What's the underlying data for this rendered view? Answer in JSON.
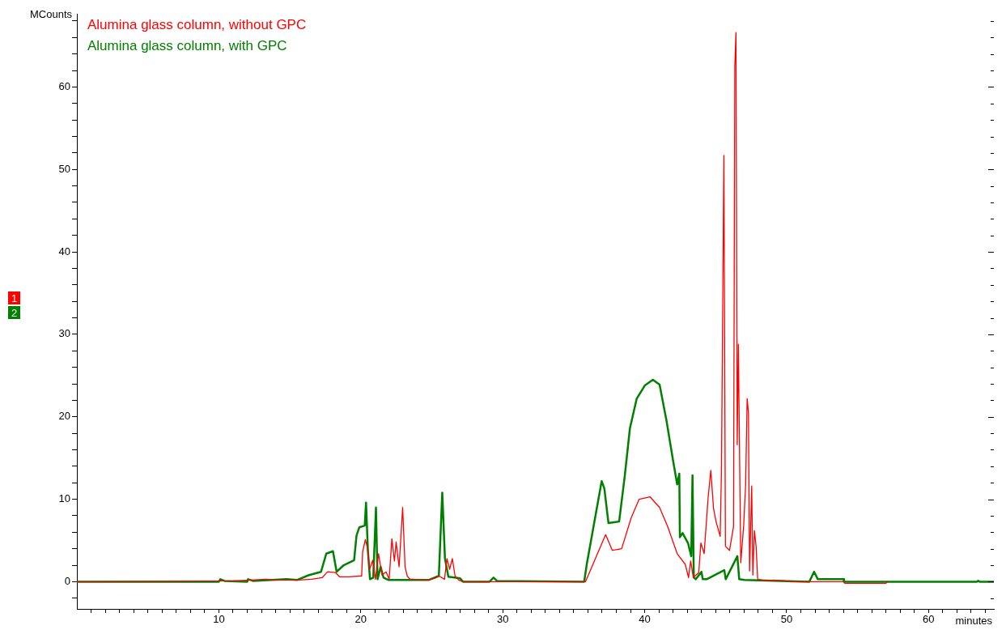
{
  "chart_data": {
    "type": "line",
    "xlabel": "minutes",
    "ylabel": "MCounts",
    "legend": "top left",
    "marker": "none",
    "line_style": "solid",
    "annotations": [
      "1",
      "2"
    ],
    "xlim": [
      0,
      64.6
    ],
    "ylim": [
      -3.3,
      68.8
    ],
    "xticks": [
      {
        "value": 1,
        "label": null
      },
      {
        "value": 2,
        "label": null
      },
      {
        "value": 3,
        "label": null
      },
      {
        "value": 4,
        "label": null
      },
      {
        "value": 5,
        "label": null
      },
      {
        "value": 6,
        "label": null
      },
      {
        "value": 7,
        "label": null
      },
      {
        "value": 8,
        "label": null
      },
      {
        "value": 9,
        "label": null
      },
      10,
      {
        "value": 11,
        "label": null
      },
      {
        "value": 12,
        "label": null
      },
      {
        "value": 13,
        "label": null
      },
      {
        "value": 14,
        "label": null
      },
      {
        "value": 15,
        "label": null
      },
      {
        "value": 16,
        "label": null
      },
      {
        "value": 17,
        "label": null
      },
      {
        "value": 18,
        "label": null
      },
      {
        "value": 19,
        "label": null
      },
      20,
      {
        "value": 21,
        "label": null
      },
      {
        "value": 22,
        "label": null
      },
      {
        "value": 23,
        "label": null
      },
      {
        "value": 24,
        "label": null
      },
      {
        "value": 25,
        "label": null
      },
      {
        "value": 26,
        "label": null
      },
      {
        "value": 27,
        "label": null
      },
      {
        "value": 28,
        "label": null
      },
      {
        "value": 29,
        "label": null
      },
      30,
      {
        "value": 31,
        "label": null
      },
      {
        "value": 32,
        "label": null
      },
      {
        "value": 33,
        "label": null
      },
      {
        "value": 34,
        "label": null
      },
      {
        "value": 35,
        "label": null
      },
      {
        "value": 36,
        "label": null
      },
      {
        "value": 37,
        "label": null
      },
      {
        "value": 38,
        "label": null
      },
      {
        "value": 39,
        "label": null
      },
      40,
      {
        "value": 41,
        "label": null
      },
      {
        "value": 42,
        "label": null
      },
      {
        "value": 43,
        "label": null
      },
      {
        "value": 44,
        "label": null
      },
      {
        "value": 45,
        "label": null
      },
      {
        "value": 46,
        "label": null
      },
      {
        "value": 47,
        "label": null
      },
      {
        "value": 48,
        "label": null
      },
      {
        "value": 49,
        "label": null
      },
      50,
      {
        "value": 51,
        "label": null
      },
      {
        "value": 52,
        "label": null
      },
      {
        "value": 53,
        "label": null
      },
      {
        "value": 54,
        "label": null
      },
      {
        "value": 55,
        "label": null
      },
      {
        "value": 56,
        "label": null
      },
      {
        "value": 57,
        "label": null
      },
      {
        "value": 58,
        "label": null
      },
      {
        "value": 59,
        "label": null
      },
      60,
      {
        "value": 61,
        "label": null
      },
      {
        "value": 62,
        "label": null
      },
      {
        "value": 63,
        "label": null
      },
      {
        "value": 64,
        "label": null
      }
    ],
    "yticks": [
      {
        "value": -2,
        "label": null
      },
      0,
      {
        "value": 2,
        "label": null
      },
      {
        "value": 4,
        "label": null
      },
      {
        "value": 6,
        "label": null
      },
      {
        "value": 8,
        "label": null
      },
      10,
      {
        "value": 12,
        "label": null
      },
      {
        "value": 14,
        "label": null
      },
      {
        "value": 16,
        "label": null
      },
      {
        "value": 18,
        "label": null
      },
      20,
      {
        "value": 22,
        "label": null
      },
      {
        "value": 24,
        "label": null
      },
      {
        "value": 26,
        "label": null
      },
      {
        "value": 28,
        "label": null
      },
      30,
      {
        "value": 32,
        "label": null
      },
      {
        "value": 34,
        "label": null
      },
      {
        "value": 36,
        "label": null
      },
      {
        "value": 38,
        "label": null
      },
      40,
      {
        "value": 42,
        "label": null
      },
      {
        "value": 44,
        "label": null
      },
      {
        "value": 46,
        "label": null
      },
      {
        "value": 48,
        "label": null
      },
      50,
      {
        "value": 52,
        "label": null
      },
      {
        "value": 54,
        "label": null
      },
      {
        "value": 56,
        "label": null
      },
      {
        "value": 58,
        "label": null
      },
      60,
      {
        "value": 62,
        "label": null
      },
      {
        "value": 64,
        "label": null
      },
      {
        "value": 66,
        "label": null
      },
      {
        "value": 68,
        "label": null
      }
    ],
    "series": [
      {
        "name": "Alumina glass column, without GPC",
        "color": "#ff0000",
        "x": [
          0,
          11.0,
          12.25,
          13.36,
          13.9,
          15.6,
          16.54,
          17.29,
          17.66,
          18.22,
          18.5,
          19.16,
          20.06,
          20.13,
          20.32,
          20.47,
          20.62,
          20.84,
          21.03,
          21.25,
          21.5,
          21.78,
          22.0,
          22.19,
          22.37,
          22.49,
          22.7,
          22.95,
          23.12,
          23.27,
          23.46,
          24.77,
          25.33,
          25.5,
          25.9,
          26.07,
          26.26,
          26.45,
          26.64,
          26.9,
          27.2,
          35.83,
          37.25,
          37.72,
          38.38,
          39.04,
          39.61,
          40.37,
          41.05,
          41.62,
          42.29,
          42.86,
          43.09,
          43.24,
          43.43,
          43.81,
          43.96,
          44.19,
          44.47,
          44.66,
          44.85,
          45.04,
          45.32,
          45.41,
          45.58,
          45.69,
          45.98,
          46.26,
          46.35,
          46.43,
          46.52,
          46.6,
          46.77,
          46.97,
          47.11,
          47.22,
          47.31,
          47.39,
          47.54,
          47.62,
          47.73,
          47.85,
          47.96,
          48.53,
          49.1,
          50.5,
          54.0,
          54.1,
          57.0,
          57.1
        ],
        "values": [
          0,
          0.1,
          0.2,
          0.3,
          0.2,
          0.2,
          0.3,
          0.5,
          1.2,
          1.1,
          0.6,
          0.6,
          0.7,
          3.6,
          5.1,
          4.1,
          1.5,
          2.6,
          0.3,
          3.4,
          0.8,
          1.2,
          0.3,
          5.2,
          2.5,
          4.8,
          1.8,
          9.0,
          1.8,
          0.7,
          0.3,
          0.2,
          0.5,
          0.7,
          0.3,
          2.8,
          1.5,
          2.8,
          0.7,
          0.2,
          0,
          0,
          5.7,
          3.8,
          4.0,
          7.7,
          10.0,
          10.3,
          9.0,
          6.7,
          3.4,
          2.1,
          0.5,
          2.5,
          0.5,
          1.1,
          4.7,
          3.4,
          10.2,
          13.5,
          8.9,
          7.2,
          5.5,
          13.6,
          51.7,
          4.3,
          3.8,
          6.7,
          62.5,
          66.6,
          16.6,
          28.8,
          2.3,
          6.7,
          11.6,
          22.2,
          20.5,
          1.3,
          11.6,
          0.8,
          6.2,
          4.3,
          0.3,
          0.1,
          0.2,
          0,
          0,
          -0.2,
          -0.2,
          0
        ]
      },
      {
        "name": "Alumina glass column, with GPC",
        "color": "#008000",
        "x": [
          0,
          10.0,
          10.1,
          10.4,
          12.0,
          12.06,
          12.4,
          14.77,
          15.5,
          16.35,
          17.2,
          17.57,
          18.04,
          18.3,
          18.8,
          19.53,
          19.7,
          19.9,
          20.28,
          20.37,
          20.5,
          20.65,
          20.88,
          21.07,
          21.18,
          21.4,
          21.6,
          21.96,
          22.9,
          24.77,
          25.5,
          25.74,
          25.93,
          26.17,
          27.0,
          27.2,
          29.07,
          29.35,
          29.6,
          35.74,
          35.92,
          36.97,
          37.16,
          37.45,
          38.2,
          38.59,
          38.96,
          39.44,
          40.01,
          40.58,
          41.05,
          41.53,
          42.0,
          42.29,
          42.44,
          42.48,
          42.67,
          43.05,
          43.28,
          43.37,
          43.46,
          43.6,
          44.0,
          44.09,
          44.37,
          45.61,
          45.71,
          46.53,
          46.66,
          47.04,
          51.6,
          51.93,
          52.2,
          54.0,
          54.05,
          63.4,
          63.5,
          63.6,
          64.6
        ],
        "values": [
          0,
          0,
          0.3,
          0.1,
          0,
          0.3,
          0.1,
          0.3,
          0.2,
          0.8,
          1.2,
          3.4,
          3.7,
          1.2,
          2.0,
          2.6,
          5.6,
          6.6,
          6.8,
          9.6,
          3.8,
          0.3,
          0.5,
          9.0,
          0.3,
          1.8,
          0.5,
          0.2,
          0.2,
          0.2,
          0.7,
          10.8,
          2.8,
          0.6,
          0.4,
          0,
          0,
          0.5,
          0.1,
          0,
          2.1,
          12.2,
          11.3,
          7.1,
          7.3,
          12.7,
          18.6,
          22.2,
          23.8,
          24.5,
          23.9,
          19.6,
          14.7,
          11.8,
          13.1,
          5.4,
          5.9,
          4.7,
          3.1,
          12.9,
          0.5,
          0.3,
          1.2,
          0.3,
          0.3,
          1.4,
          0.3,
          3.1,
          0.3,
          0.2,
          0,
          1.2,
          0.3,
          0.3,
          0,
          0,
          0.1,
          0,
          0
        ]
      }
    ]
  }
}
